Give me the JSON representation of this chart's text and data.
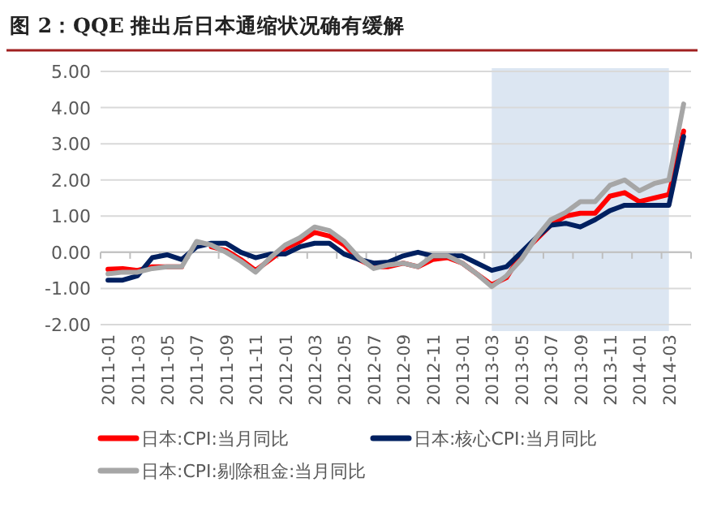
{
  "chart_data": {
    "type": "line",
    "title": "图 2：QQE 推出后日本通缩状况确有缓解",
    "categories": [
      "2011-01",
      null,
      "2011-03",
      null,
      "2011-05",
      null,
      "2011-07",
      null,
      "2011-09",
      null,
      "2011-11",
      null,
      "2012-01",
      null,
      "2012-03",
      null,
      "2012-05",
      null,
      "2012-07",
      null,
      "2012-09",
      null,
      "2012-11",
      null,
      "2013-01",
      null,
      "2013-03",
      null,
      "2013-05",
      null,
      "2013-07",
      null,
      "2013-09",
      null,
      "2013-11",
      null,
      "2014-01",
      null,
      "2014-03",
      null
    ],
    "series": [
      {
        "name": "日本:CPI:当月同比",
        "color": "#ff0000",
        "values": [
          -0.47,
          -0.45,
          -0.5,
          -0.4,
          -0.4,
          -0.4,
          null,
          0.15,
          0.05,
          -0.2,
          -0.5,
          -0.2,
          0.1,
          0.3,
          0.55,
          0.45,
          0.2,
          -0.2,
          -0.4,
          -0.4,
          -0.3,
          -0.4,
          -0.2,
          -0.15,
          -0.3,
          -0.6,
          -0.9,
          -0.7,
          -0.05,
          0.35,
          0.75,
          1.0,
          1.08,
          1.08,
          1.55,
          1.65,
          1.4,
          1.5,
          1.6,
          3.35
        ]
      },
      {
        "name": "日本:核心CPI:当月同比",
        "color": "#002060",
        "values": [
          -0.77,
          -0.77,
          -0.65,
          -0.15,
          -0.07,
          -0.2,
          0.15,
          0.25,
          0.25,
          0,
          -0.15,
          -0.05,
          -0.05,
          0.15,
          0.25,
          0.25,
          -0.05,
          -0.2,
          -0.3,
          -0.27,
          -0.1,
          0,
          -0.1,
          -0.1,
          -0.1,
          -0.3,
          -0.5,
          -0.4,
          0,
          0.4,
          0.75,
          0.8,
          0.7,
          0.9,
          1.15,
          1.3,
          1.3,
          1.3,
          1.3,
          3.2
        ]
      },
      {
        "name": "日本:CPI:剔除租金:当月同比",
        "color": "#a6a6a6",
        "values": [
          -0.6,
          -0.55,
          -0.55,
          -0.45,
          -0.4,
          -0.4,
          0.3,
          0.2,
          0,
          -0.25,
          -0.55,
          -0.15,
          0.2,
          0.4,
          0.7,
          0.6,
          0.3,
          -0.15,
          -0.45,
          -0.35,
          -0.3,
          -0.4,
          -0.1,
          -0.1,
          -0.3,
          -0.6,
          -0.95,
          -0.65,
          -0.2,
          0.4,
          0.9,
          1.1,
          1.4,
          1.4,
          1.85,
          2.0,
          1.7,
          1.9,
          2.0,
          4.1
        ]
      }
    ],
    "ylim": [
      -2,
      5
    ],
    "yticks": [
      {
        "value": -2,
        "label": "-2.00"
      },
      {
        "value": -1,
        "label": "-1.00"
      },
      {
        "value": 0,
        "label": "0.00"
      },
      {
        "value": 1,
        "label": "1.00"
      },
      {
        "value": 2,
        "label": "2.00"
      },
      {
        "value": 3,
        "label": "3.00"
      },
      {
        "value": 4,
        "label": "4.00"
      },
      {
        "value": 5,
        "label": "5.00"
      }
    ],
    "bands": [
      {
        "axis": "x",
        "from": "2013-03",
        "to": "2014-03",
        "color": "#dce6f2"
      }
    ],
    "grid": "y",
    "legend": "bottom",
    "marker": "none",
    "line_style": "solid"
  }
}
